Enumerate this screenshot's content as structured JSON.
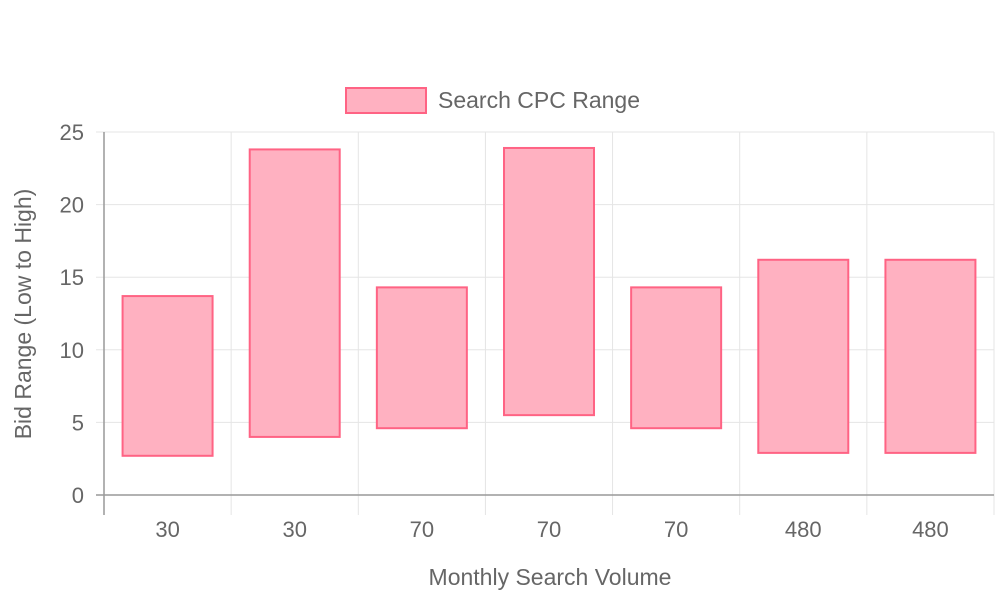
{
  "chart_data": {
    "type": "bar",
    "title": "",
    "xlabel": "Monthly Search Volume",
    "ylabel": "Bid Range (Low to High)",
    "categories": [
      "30",
      "30",
      "70",
      "70",
      "70",
      "480",
      "480"
    ],
    "series": [
      {
        "name": "Search CPC Range",
        "ranges": [
          [
            2.7,
            13.7
          ],
          [
            4.0,
            23.8
          ],
          [
            4.6,
            14.3
          ],
          [
            5.5,
            23.9
          ],
          [
            4.6,
            14.3
          ],
          [
            2.9,
            16.2
          ],
          [
            2.9,
            16.2
          ]
        ],
        "fill": "#ffb1c1",
        "stroke": "#ff6384"
      }
    ],
    "ylim": [
      0,
      25
    ],
    "yticks": [
      0,
      5,
      10,
      15,
      20,
      25
    ],
    "grid": true,
    "legend_position": "top",
    "gridColor": "#e5e5e5",
    "axisColor": "#999999",
    "textColor": "#666666"
  }
}
